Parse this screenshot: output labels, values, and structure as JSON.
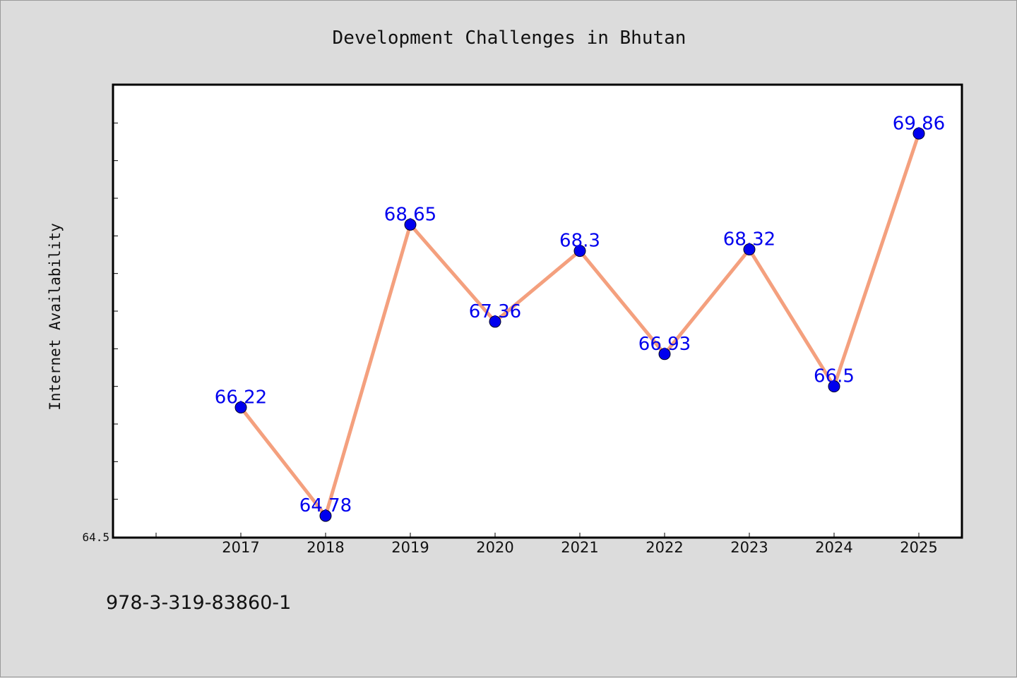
{
  "chart_data": {
    "type": "line",
    "title": "Development Challenges in Bhutan",
    "xlabel": "",
    "ylabel": "Internet Availability",
    "categories": [
      "2017",
      "2018",
      "2019",
      "2020",
      "2021",
      "2022",
      "2023",
      "2024",
      "2025"
    ],
    "series": [
      {
        "values": [
          66.22,
          64.78,
          68.65,
          67.36,
          68.3,
          66.93,
          68.32,
          66.5,
          69.86
        ],
        "labels": [
          "66.22",
          "64.78",
          "68.65",
          "67.36",
          "68.3",
          "66.93",
          "68.32",
          "66.5",
          "69.86"
        ]
      }
    ],
    "ylim": [
      64.5,
      70.5
    ],
    "yticks_labeled": [
      "64.5"
    ],
    "grid": false,
    "legend": "none",
    "line_color": "#f4a07e",
    "marker_color": "#0000ee",
    "label_color": "#0000ee"
  },
  "footer": {
    "isbn": "978-3-319-83860-1"
  }
}
